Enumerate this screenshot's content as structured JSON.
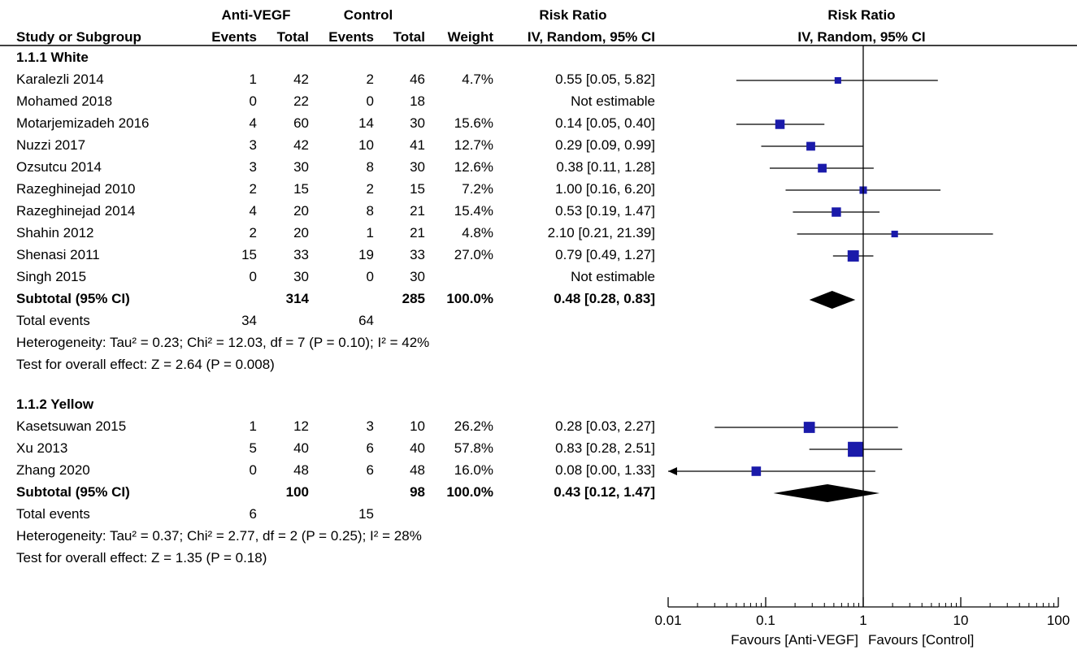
{
  "header": {
    "group1": "Anti-VEGF",
    "group2": "Control",
    "effect_left": "Risk Ratio",
    "effect_right": "Risk Ratio",
    "study_col": "Study or Subgroup",
    "events": "Events",
    "total": "Total",
    "weight": "Weight",
    "method_left": "IV, Random, 95% CI",
    "method_right": "IV, Random, 95% CI"
  },
  "chart_data": {
    "type": "forest",
    "scale": "log",
    "xlim": [
      0.01,
      100
    ],
    "null_value": 1,
    "ticks": [
      {
        "value": 0.01,
        "label": "0.01"
      },
      {
        "value": 0.1,
        "label": "0.1"
      },
      {
        "value": 1,
        "label": "1"
      },
      {
        "value": 10,
        "label": "10"
      },
      {
        "value": 100,
        "label": "100"
      }
    ],
    "favours_left": "Favours [Anti-VEGF]",
    "favours_right": "Favours [Control]",
    "subgroups": [
      {
        "title": "1.1.1 White",
        "studies": [
          {
            "name": "Karalezli 2014",
            "e1": "1",
            "t1": "42",
            "e2": "2",
            "t2": "46",
            "weight": "4.7%",
            "ci_text": "0.55 [0.05, 5.82]",
            "rr": 0.55,
            "lo": 0.05,
            "hi": 5.82,
            "w": 4.7
          },
          {
            "name": "Mohamed 2018",
            "e1": "0",
            "t1": "22",
            "e2": "0",
            "t2": "18",
            "weight": "",
            "ci_text": "Not estimable"
          },
          {
            "name": "Motarjemizadeh 2016",
            "e1": "4",
            "t1": "60",
            "e2": "14",
            "t2": "30",
            "weight": "15.6%",
            "ci_text": "0.14 [0.05, 0.40]",
            "rr": 0.14,
            "lo": 0.05,
            "hi": 0.4,
            "w": 15.6
          },
          {
            "name": "Nuzzi 2017",
            "e1": "3",
            "t1": "42",
            "e2": "10",
            "t2": "41",
            "weight": "12.7%",
            "ci_text": "0.29 [0.09, 0.99]",
            "rr": 0.29,
            "lo": 0.09,
            "hi": 0.99,
            "w": 12.7
          },
          {
            "name": "Ozsutcu 2014",
            "e1": "3",
            "t1": "30",
            "e2": "8",
            "t2": "30",
            "weight": "12.6%",
            "ci_text": "0.38 [0.11, 1.28]",
            "rr": 0.38,
            "lo": 0.11,
            "hi": 1.28,
            "w": 12.6
          },
          {
            "name": "Razeghinejad 2010",
            "e1": "2",
            "t1": "15",
            "e2": "2",
            "t2": "15",
            "weight": "7.2%",
            "ci_text": "1.00 [0.16, 6.20]",
            "rr": 1.0,
            "lo": 0.16,
            "hi": 6.2,
            "w": 7.2
          },
          {
            "name": "Razeghinejad 2014",
            "e1": "4",
            "t1": "20",
            "e2": "8",
            "t2": "21",
            "weight": "15.4%",
            "ci_text": "0.53 [0.19, 1.47]",
            "rr": 0.53,
            "lo": 0.19,
            "hi": 1.47,
            "w": 15.4
          },
          {
            "name": "Shahin 2012",
            "e1": "2",
            "t1": "20",
            "e2": "1",
            "t2": "21",
            "weight": "4.8%",
            "ci_text": "2.10 [0.21, 21.39]",
            "rr": 2.1,
            "lo": 0.21,
            "hi": 21.39,
            "w": 4.8
          },
          {
            "name": "Shenasi 2011",
            "e1": "15",
            "t1": "33",
            "e2": "19",
            "t2": "33",
            "weight": "27.0%",
            "ci_text": "0.79 [0.49, 1.27]",
            "rr": 0.79,
            "lo": 0.49,
            "hi": 1.27,
            "w": 27.0
          },
          {
            "name": "Singh 2015",
            "e1": "0",
            "t1": "30",
            "e2": "0",
            "t2": "30",
            "weight": "",
            "ci_text": "Not estimable"
          }
        ],
        "subtotal": {
          "label": "Subtotal (95% CI)",
          "t1": "314",
          "t2": "285",
          "weight": "100.0%",
          "ci_text": "0.48 [0.28, 0.83]",
          "rr": 0.48,
          "lo": 0.28,
          "hi": 0.83
        },
        "total_events": {
          "label": "Total events",
          "e1": "34",
          "e2": "64"
        },
        "heterogeneity": "Heterogeneity: Tau² = 0.23; Chi² = 12.03, df = 7 (P = 0.10); I² = 42%",
        "overall": "Test for overall effect: Z = 2.64 (P = 0.008)"
      },
      {
        "title": "1.1.2 Yellow",
        "studies": [
          {
            "name": "Kasetsuwan 2015",
            "e1": "1",
            "t1": "12",
            "e2": "3",
            "t2": "10",
            "weight": "26.2%",
            "ci_text": "0.28 [0.03, 2.27]",
            "rr": 0.28,
            "lo": 0.03,
            "hi": 2.27,
            "w": 26.2
          },
          {
            "name": "Xu 2013",
            "e1": "5",
            "t1": "40",
            "e2": "6",
            "t2": "40",
            "weight": "57.8%",
            "ci_text": "0.83 [0.28, 2.51]",
            "rr": 0.83,
            "lo": 0.28,
            "hi": 2.51,
            "w": 57.8
          },
          {
            "name": "Zhang 2020",
            "e1": "0",
            "t1": "48",
            "e2": "6",
            "t2": "48",
            "weight": "16.0%",
            "ci_text": "0.08 [0.00, 1.33]",
            "rr": 0.08,
            "lo": 0.003,
            "hi": 1.33,
            "w": 16.0
          }
        ],
        "subtotal": {
          "label": "Subtotal (95% CI)",
          "t1": "100",
          "t2": "98",
          "weight": "100.0%",
          "ci_text": "0.43 [0.12, 1.47]",
          "rr": 0.43,
          "lo": 0.12,
          "hi": 1.47
        },
        "total_events": {
          "label": "Total events",
          "e1": "6",
          "e2": "15"
        },
        "heterogeneity": "Heterogeneity: Tau² = 0.37; Chi² = 2.77, df = 2 (P = 0.25); I² = 28%",
        "overall": "Test for overall effect: Z = 1.35 (P = 0.18)"
      }
    ]
  },
  "colors": {
    "marker": "#1a1aaa",
    "line": "#000000",
    "diamond": "#000000",
    "background": "#ffffff"
  }
}
